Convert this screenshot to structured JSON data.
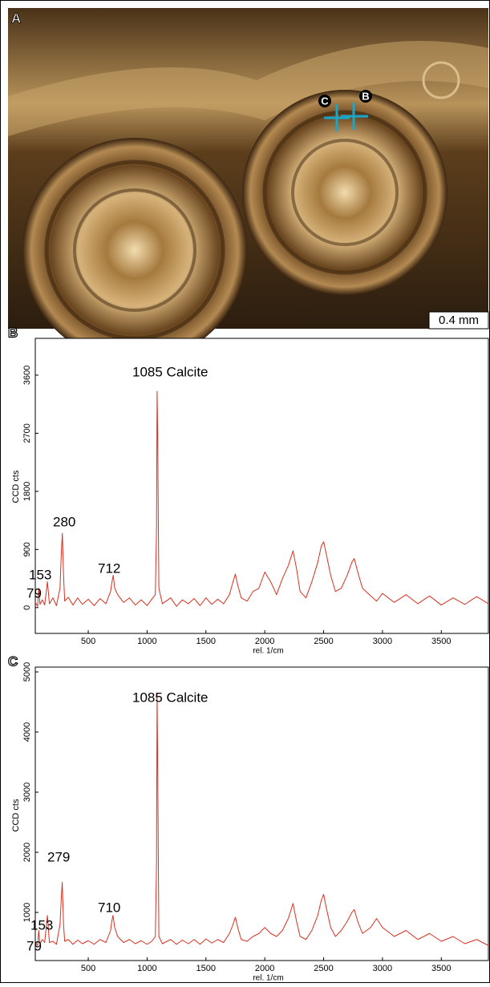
{
  "photo": {
    "panel": "A",
    "marker_b": "B",
    "marker_c": "C",
    "scale_bar": "0.4 mm"
  },
  "chart_data": [
    {
      "type": "line",
      "panel": "B",
      "xlabel": "rel. 1/cm",
      "ylabel": "CCD cts",
      "color": "#d9301f",
      "annotations": [
        "1085 Calcite",
        "280",
        "712",
        "153",
        "79"
      ],
      "xlim": [
        50,
        3900
      ],
      "ylim": [
        -400,
        4170
      ],
      "xticks": [
        500,
        1000,
        1500,
        2000,
        2500,
        3000,
        3500
      ],
      "yticks": [
        0,
        900,
        1800,
        2700,
        3600
      ],
      "x": [
        50,
        70,
        79,
        90,
        110,
        130,
        153,
        170,
        200,
        230,
        260,
        270,
        280,
        290,
        300,
        330,
        370,
        410,
        450,
        500,
        550,
        600,
        650,
        690,
        700,
        712,
        725,
        750,
        800,
        850,
        900,
        950,
        1000,
        1040,
        1070,
        1080,
        1085,
        1090,
        1100,
        1130,
        1200,
        1250,
        1300,
        1350,
        1400,
        1450,
        1500,
        1550,
        1600,
        1650,
        1700,
        1730,
        1750,
        1770,
        1800,
        1850,
        1900,
        1950,
        2000,
        2050,
        2100,
        2150,
        2200,
        2240,
        2270,
        2300,
        2350,
        2400,
        2450,
        2480,
        2500,
        2520,
        2560,
        2600,
        2650,
        2700,
        2740,
        2760,
        2790,
        2830,
        2900,
        2950,
        3000,
        3100,
        3200,
        3300,
        3400,
        3500,
        3600,
        3700,
        3800,
        3900
      ],
      "values": [
        80,
        20,
        300,
        50,
        120,
        40,
        400,
        60,
        150,
        30,
        300,
        800,
        1150,
        500,
        100,
        160,
        40,
        150,
        50,
        130,
        30,
        140,
        60,
        250,
        380,
        500,
        300,
        200,
        80,
        150,
        40,
        120,
        30,
        130,
        200,
        1200,
        3350,
        2700,
        300,
        60,
        150,
        20,
        120,
        60,
        140,
        30,
        150,
        50,
        130,
        60,
        200,
        400,
        520,
        350,
        150,
        100,
        250,
        300,
        550,
        400,
        200,
        450,
        650,
        880,
        600,
        250,
        150,
        400,
        700,
        950,
        1020,
        850,
        500,
        250,
        300,
        500,
        700,
        760,
        550,
        300,
        180,
        100,
        220,
        80,
        200,
        60,
        180,
        40,
        150,
        50,
        170,
        60
      ]
    },
    {
      "type": "line",
      "panel": "C",
      "xlabel": "rel. 1/cm",
      "ylabel": "CCD cts",
      "color": "#d9301f",
      "annotations": [
        "1085 Calcite",
        "279",
        "710",
        "153",
        "79"
      ],
      "xlim": [
        50,
        3900
      ],
      "ylim": [
        200,
        5080
      ],
      "xticks": [
        500,
        1000,
        1500,
        2000,
        2500,
        3000,
        3500
      ],
      "yticks": [
        1000,
        2000,
        3000,
        4000,
        5000
      ],
      "x": [
        50,
        70,
        79,
        90,
        110,
        130,
        153,
        170,
        200,
        230,
        260,
        270,
        279,
        290,
        300,
        330,
        370,
        410,
        450,
        500,
        550,
        600,
        650,
        690,
        700,
        710,
        725,
        750,
        800,
        850,
        900,
        950,
        1000,
        1040,
        1070,
        1080,
        1085,
        1090,
        1100,
        1130,
        1200,
        1250,
        1300,
        1350,
        1400,
        1450,
        1500,
        1550,
        1600,
        1650,
        1700,
        1730,
        1750,
        1770,
        1800,
        1850,
        1900,
        1950,
        2000,
        2050,
        2100,
        2150,
        2200,
        2240,
        2270,
        2300,
        2350,
        2400,
        2450,
        2480,
        2500,
        2520,
        2560,
        2600,
        2650,
        2700,
        2740,
        2760,
        2790,
        2830,
        2900,
        2950,
        3000,
        3100,
        3200,
        3300,
        3400,
        3500,
        3600,
        3700,
        3800,
        3900
      ],
      "values": [
        500,
        450,
        700,
        480,
        550,
        500,
        950,
        500,
        520,
        470,
        800,
        1200,
        1500,
        800,
        520,
        550,
        470,
        540,
        480,
        530,
        470,
        550,
        500,
        700,
        850,
        950,
        750,
        600,
        500,
        550,
        480,
        530,
        470,
        520,
        600,
        1800,
        4650,
        3500,
        600,
        480,
        550,
        470,
        540,
        480,
        550,
        470,
        560,
        490,
        550,
        500,
        650,
        800,
        920,
        750,
        550,
        520,
        600,
        650,
        750,
        650,
        600,
        700,
        900,
        1150,
        850,
        600,
        550,
        700,
        950,
        1200,
        1300,
        1100,
        750,
        600,
        700,
        850,
        1000,
        1050,
        850,
        650,
        750,
        900,
        750,
        600,
        700,
        550,
        650,
        520,
        600,
        480,
        550,
        450
      ]
    }
  ]
}
